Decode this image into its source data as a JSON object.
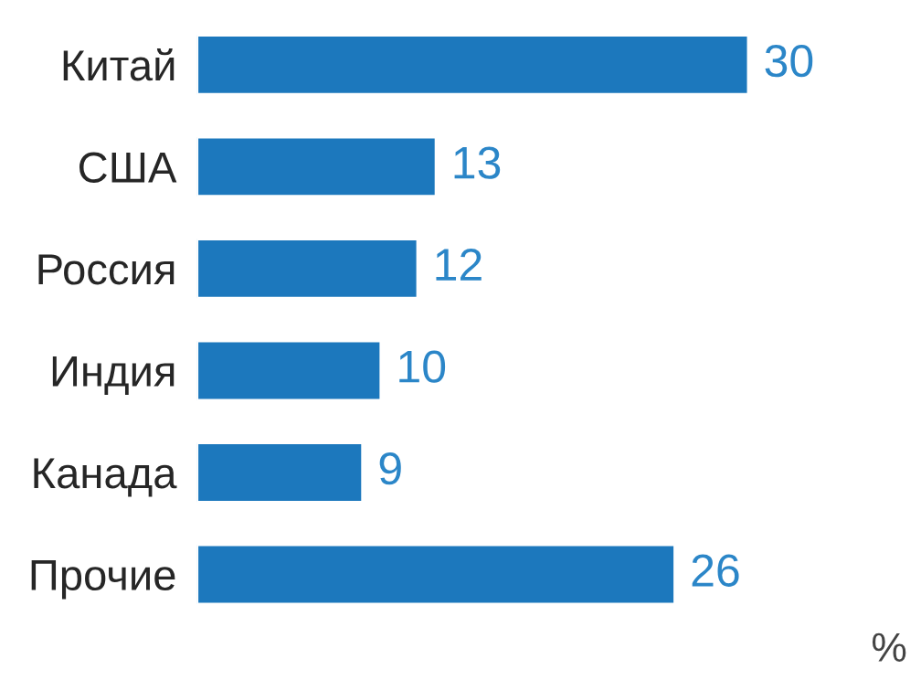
{
  "chart_data": {
    "type": "bar",
    "orientation": "horizontal",
    "categories": [
      "Китай",
      "США",
      "Россия",
      "Индия",
      "Канада",
      "Прочие"
    ],
    "values": [
      30,
      13,
      12,
      10,
      9,
      26
    ],
    "color": "#1c78bd",
    "data_labels": true,
    "annotations": [
      "%"
    ],
    "grid": false,
    "legend": false
  }
}
